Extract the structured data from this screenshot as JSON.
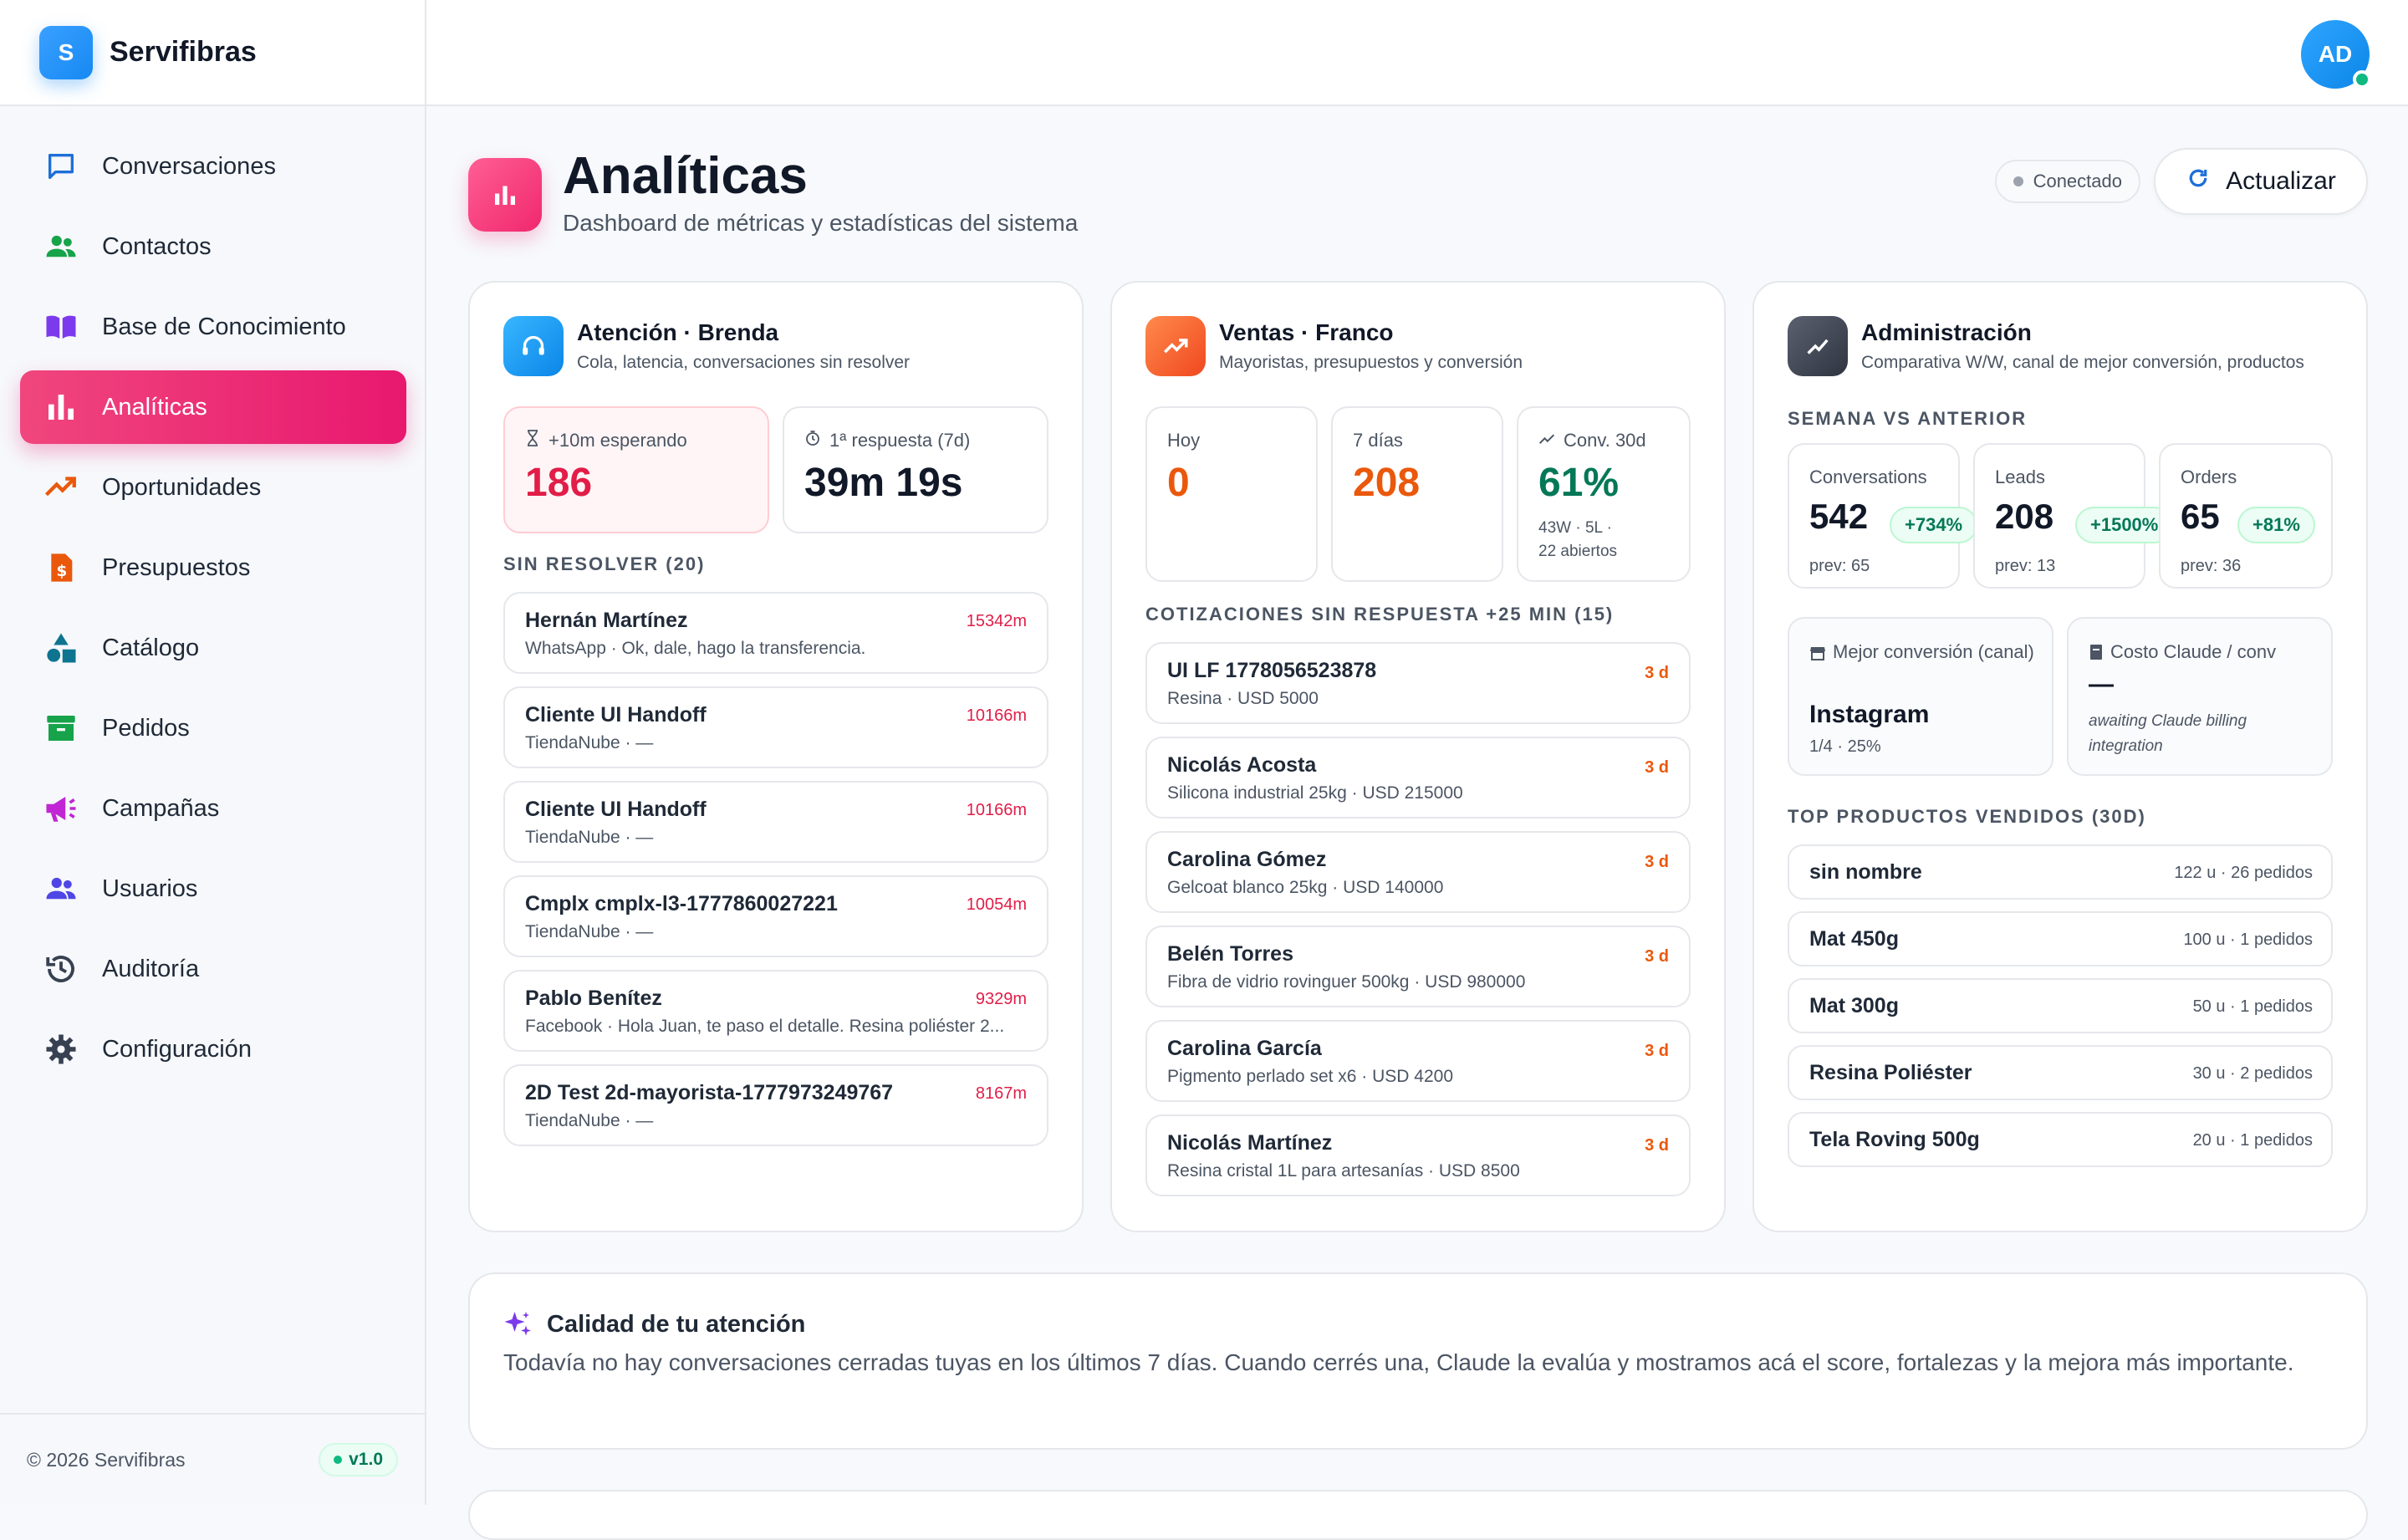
{
  "brand": {
    "logo_letter": "S",
    "name": "Servifibras"
  },
  "sidebar": {
    "items": [
      {
        "label": "Conversaciones",
        "icon": "chat-icon",
        "color": "#1d6fd8",
        "active": false
      },
      {
        "label": "Contactos",
        "icon": "contacts-icon",
        "color": "#16a34a",
        "active": false
      },
      {
        "label": "Base de Conocimiento",
        "icon": "book-icon",
        "color": "#7c3aed",
        "active": false
      },
      {
        "label": "Analíticas",
        "icon": "bar-chart-icon",
        "color": "#ffffff",
        "active": true
      },
      {
        "label": "Oportunidades",
        "icon": "trending-up-icon",
        "color": "#ea580c",
        "active": false
      },
      {
        "label": "Presupuestos",
        "icon": "invoice-icon",
        "color": "#ea580c",
        "active": false
      },
      {
        "label": "Catálogo",
        "icon": "shapes-icon",
        "color": "#0e7490",
        "active": false
      },
      {
        "label": "Pedidos",
        "icon": "archive-icon",
        "color": "#16a34a",
        "active": false
      },
      {
        "label": "Campañas",
        "icon": "megaphone-icon",
        "color": "#c026d3",
        "active": false
      },
      {
        "label": "Usuarios",
        "icon": "users-icon",
        "color": "#4f46e5",
        "active": false
      },
      {
        "label": "Auditoría",
        "icon": "history-icon",
        "color": "#374151",
        "active": false
      },
      {
        "label": "Configuración",
        "icon": "gear-icon",
        "color": "#374151",
        "active": false
      }
    ],
    "footer": {
      "copyright": "© 2026 Servifibras",
      "version": "v1.0"
    }
  },
  "topbar": {
    "avatar_initials": "AD"
  },
  "header": {
    "title": "Analíticas",
    "subtitle": "Dashboard de métricas y estadísticas del sistema",
    "status": "Conectado",
    "refresh_label": "Actualizar"
  },
  "atencion": {
    "title": "Atención · Brenda",
    "subtitle": "Cola, latencia, conversaciones sin resolver",
    "waiting_label": "+10m esperando",
    "waiting_value": "186",
    "first_response_label": "1ª respuesta (7d)",
    "first_response_value": "39m 19s",
    "unresolved_label": "SIN RESOLVER (20)",
    "unresolved": [
      {
        "name": "Hernán Martínez",
        "time": "15342m",
        "sub": "WhatsApp · Ok, dale, hago la transferencia."
      },
      {
        "name": "Cliente UI Handoff",
        "time": "10166m",
        "sub": "TiendaNube · —"
      },
      {
        "name": "Cliente UI Handoff",
        "time": "10166m",
        "sub": "TiendaNube · —"
      },
      {
        "name": "Cmplx cmplx-l3-1777860027221",
        "time": "10054m",
        "sub": "TiendaNube · —"
      },
      {
        "name": "Pablo Benítez",
        "time": "9329m",
        "sub": "Facebook · Hola Juan, te paso el detalle. Resina poliéster 2..."
      },
      {
        "name": "2D Test 2d-mayorista-1777973249767",
        "time": "8167m",
        "sub": "TiendaNube · —"
      }
    ]
  },
  "ventas": {
    "title": "Ventas · Franco",
    "subtitle": "Mayoristas, presupuestos y conversión",
    "today_label": "Hoy",
    "today_value": "0",
    "week_label": "7 días",
    "week_value": "208",
    "conv_label": "Conv. 30d",
    "conv_value": "61%",
    "conv_detail_1": "43W · 5L ·",
    "conv_detail_2": "22 abiertos",
    "quotes_label": "COTIZACIONES SIN RESPUESTA +25 MIN (15)",
    "quotes": [
      {
        "name": "UI LF 1778056523878",
        "age": "3 d",
        "sub": "Resina · USD 5000"
      },
      {
        "name": "Nicolás Acosta",
        "age": "3 d",
        "sub": "Silicona industrial 25kg · USD 215000"
      },
      {
        "name": "Carolina Gómez",
        "age": "3 d",
        "sub": "Gelcoat blanco 25kg · USD 140000"
      },
      {
        "name": "Belén Torres",
        "age": "3 d",
        "sub": "Fibra de vidrio rovinguer 500kg · USD 980000"
      },
      {
        "name": "Carolina García",
        "age": "3 d",
        "sub": "Pigmento perlado set x6 · USD 4200"
      },
      {
        "name": "Nicolás Martínez",
        "age": "3 d",
        "sub": "Resina cristal 1L para artesanías · USD 8500"
      }
    ]
  },
  "admin": {
    "title": "Administración",
    "subtitle": "Comparativa W/W, canal de mejor conversión, productos",
    "week_label": "SEMANA VS ANTERIOR",
    "kpis": [
      {
        "label": "Conversations",
        "value": "542",
        "delta": "+734%",
        "prev": "prev: 65"
      },
      {
        "label": "Leads",
        "value": "208",
        "delta": "+1500%",
        "prev": "prev: 13"
      },
      {
        "label": "Orders",
        "value": "65",
        "delta": "+81%",
        "prev": "prev: 36"
      }
    ],
    "best_channel_label": "Mejor conversión (canal)",
    "best_channel_value": "Instagram",
    "best_channel_detail": "1/4 · 25%",
    "cost_label": "Costo Claude / conv",
    "cost_value": "—",
    "cost_note": "awaiting Claude billing integration",
    "products_label": "TOP PRODUCTOS VENDIDOS (30D)",
    "products": [
      {
        "name": "sin nombre",
        "meta": "122 u · 26 pedidos"
      },
      {
        "name": "Mat 450g",
        "meta": "100 u · 1 pedidos"
      },
      {
        "name": "Mat 300g",
        "meta": "50 u · 1 pedidos"
      },
      {
        "name": "Resina Poliéster",
        "meta": "30 u · 2 pedidos"
      },
      {
        "name": "Tela Roving 500g",
        "meta": "20 u · 1 pedidos"
      }
    ]
  },
  "quality": {
    "title": "Calidad de tu atención",
    "body": "Todavía no hay conversaciones cerradas tuyas en los últimos 7 días. Cuando cerrés una, Claude la evalúa y mostramos acá el score, fortalezas y la mejora más importante."
  },
  "colors": {
    "accent": "#e8186f",
    "danger": "#e11d48",
    "warning": "#ea580c",
    "success": "#047857",
    "primary": "#1689f3"
  }
}
